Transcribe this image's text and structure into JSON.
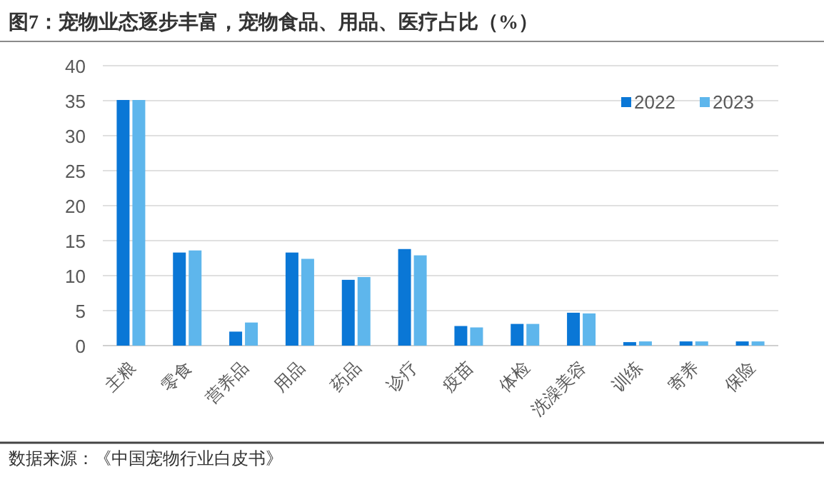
{
  "chart_data": {
    "type": "bar",
    "title": "图7：宠物业态逐步丰富，宠物食品、用品、医疗占比（%）",
    "categories": [
      "主粮",
      "零食",
      "营养品",
      "用品",
      "药品",
      "诊疗",
      "疫苗",
      "体检",
      "洗澡美容",
      "训练",
      "寄养",
      "保险"
    ],
    "series": [
      {
        "name": "2022",
        "color": "#0a77d6",
        "values": [
          35.1,
          13.3,
          2.0,
          13.3,
          9.4,
          13.8,
          2.8,
          3.1,
          4.7,
          0.5,
          0.6,
          0.6
        ]
      },
      {
        "name": "2023",
        "color": "#5eb6ec",
        "values": [
          35.1,
          13.6,
          3.3,
          12.4,
          9.8,
          12.9,
          2.6,
          3.1,
          4.6,
          0.6,
          0.6,
          0.6
        ]
      }
    ],
    "ylim": [
      0,
      40
    ],
    "yticks": [
      0,
      5,
      10,
      15,
      20,
      25,
      30,
      35,
      40
    ],
    "grid": "y",
    "legend": "top right",
    "annotations": [
      "数据来源：《中国宠物行业白皮书》"
    ]
  }
}
